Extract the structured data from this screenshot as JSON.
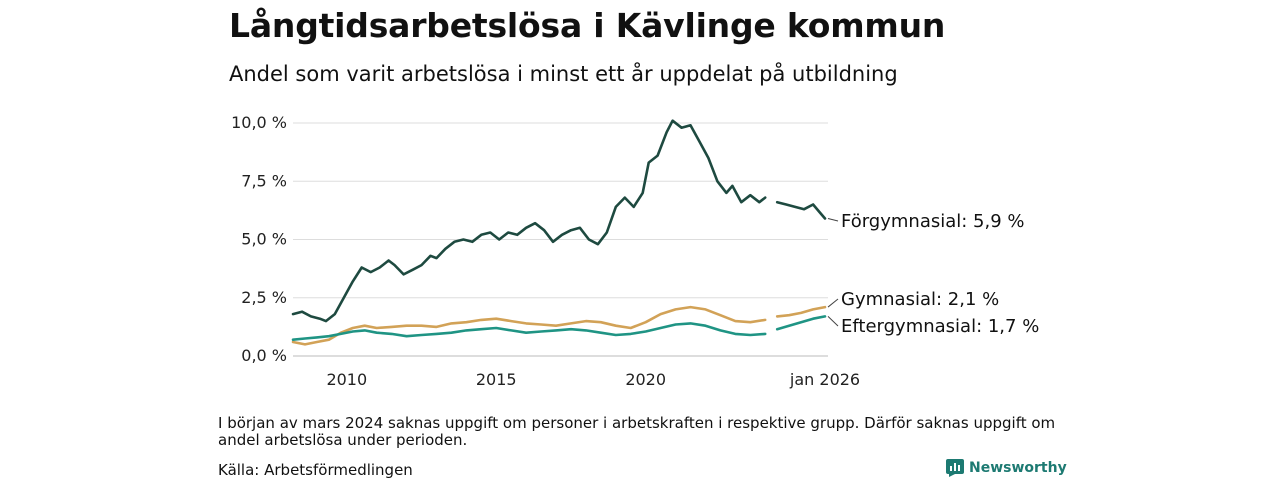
{
  "title": "Långtidsarbetslösa i Kävlinge kommun",
  "subtitle": "Andel som varit arbetslösa i minst ett år uppdelat på utbildning",
  "footnote": "I början av mars 2024 saknas uppgift om personer i arbetskraften i respektive grupp. Därför saknas uppgift om andel arbetslösa under perioden.",
  "source": "Källa: Arbetsförmedlingen",
  "brand": "Newsworthy",
  "colors": {
    "forgymnasial": "#1e4a40",
    "gymnasial": "#d2a257",
    "eftergymnasial": "#1f9484",
    "grid": "#dddddd",
    "brand": "#1d7a72"
  },
  "chart_data": {
    "type": "line",
    "title": "Långtidsarbetslösa i Kävlinge kommun",
    "xlabel": "",
    "ylabel": "",
    "xlim": [
      2008.2,
      2026.1
    ],
    "ylim": [
      0,
      10
    ],
    "x_ticks": [
      {
        "value": 2010,
        "label": "2010"
      },
      {
        "value": 2015,
        "label": "2015"
      },
      {
        "value": 2020,
        "label": "2020"
      },
      {
        "value": 2026.0,
        "label": "jan 2026"
      }
    ],
    "y_ticks": [
      {
        "value": 0,
        "label": "0,0 %"
      },
      {
        "value": 2.5,
        "label": "2,5 %"
      },
      {
        "value": 5,
        "label": "5,0 %"
      },
      {
        "value": 7.5,
        "label": "7,5 %"
      },
      {
        "value": 10,
        "label": "10,0 %"
      }
    ],
    "grid": true,
    "gap": [
      2024.05,
      2024.4
    ],
    "series": [
      {
        "name": "Förgymnasial",
        "end_label": "Förgymnasial: 5,9 %",
        "color_key": "forgymnasial",
        "x": [
          2008.2,
          2008.5,
          2008.8,
          2009.1,
          2009.3,
          2009.6,
          2009.9,
          2010.2,
          2010.5,
          2010.8,
          2011.1,
          2011.4,
          2011.6,
          2011.9,
          2012.2,
          2012.5,
          2012.8,
          2013.0,
          2013.3,
          2013.6,
          2013.9,
          2014.2,
          2014.5,
          2014.8,
          2015.1,
          2015.4,
          2015.7,
          2016.0,
          2016.3,
          2016.6,
          2016.9,
          2017.2,
          2017.5,
          2017.8,
          2018.1,
          2018.4,
          2018.7,
          2019.0,
          2019.3,
          2019.6,
          2019.9,
          2020.1,
          2020.4,
          2020.7,
          2020.9,
          2021.2,
          2021.5,
          2021.8,
          2022.1,
          2022.4,
          2022.7,
          2022.9,
          2023.2,
          2023.5,
          2023.8,
          2024.0,
          2024.4,
          2024.7,
          2025.0,
          2025.3,
          2025.6,
          2025.8,
          2026.0
        ],
        "y": [
          1.8,
          1.9,
          1.7,
          1.6,
          1.5,
          1.8,
          2.5,
          3.2,
          3.8,
          3.6,
          3.8,
          4.1,
          3.9,
          3.5,
          3.7,
          3.9,
          4.3,
          4.2,
          4.6,
          4.9,
          5.0,
          4.9,
          5.2,
          5.3,
          5.0,
          5.3,
          5.2,
          5.5,
          5.7,
          5.4,
          4.9,
          5.2,
          5.4,
          5.5,
          5.0,
          4.8,
          5.3,
          6.4,
          6.8,
          6.4,
          7.0,
          8.3,
          8.6,
          9.6,
          10.1,
          9.8,
          9.9,
          9.2,
          8.5,
          7.5,
          7.0,
          7.3,
          6.6,
          6.9,
          6.6,
          6.8,
          6.6,
          6.5,
          6.4,
          6.3,
          6.5,
          6.2,
          5.9
        ]
      },
      {
        "name": "Gymnasial",
        "end_label": "Gymnasial: 2,1 %",
        "color_key": "gymnasial",
        "x": [
          2008.2,
          2008.6,
          2009.0,
          2009.4,
          2009.8,
          2010.2,
          2010.6,
          2011.0,
          2011.5,
          2012.0,
          2012.5,
          2013.0,
          2013.5,
          2014.0,
          2014.5,
          2015.0,
          2015.5,
          2016.0,
          2016.5,
          2017.0,
          2017.5,
          2018.0,
          2018.5,
          2019.0,
          2019.5,
          2020.0,
          2020.5,
          2021.0,
          2021.5,
          2022.0,
          2022.5,
          2023.0,
          2023.5,
          2024.0,
          2024.4,
          2024.8,
          2025.2,
          2025.6,
          2026.0
        ],
        "y": [
          0.6,
          0.5,
          0.6,
          0.7,
          1.0,
          1.2,
          1.3,
          1.2,
          1.25,
          1.3,
          1.3,
          1.25,
          1.4,
          1.45,
          1.55,
          1.6,
          1.5,
          1.4,
          1.35,
          1.3,
          1.4,
          1.5,
          1.45,
          1.3,
          1.2,
          1.45,
          1.8,
          2.0,
          2.1,
          2.0,
          1.75,
          1.5,
          1.45,
          1.55,
          1.7,
          1.75,
          1.85,
          2.0,
          2.1
        ]
      },
      {
        "name": "Eftergymnasial",
        "end_label": "Eftergymnasial: 1,7 %",
        "color_key": "eftergymnasial",
        "x": [
          2008.2,
          2008.6,
          2009.0,
          2009.4,
          2009.8,
          2010.2,
          2010.6,
          2011.0,
          2011.5,
          2012.0,
          2012.5,
          2013.0,
          2013.5,
          2014.0,
          2014.5,
          2015.0,
          2015.5,
          2016.0,
          2016.5,
          2017.0,
          2017.5,
          2018.0,
          2018.5,
          2019.0,
          2019.5,
          2020.0,
          2020.5,
          2021.0,
          2021.5,
          2022.0,
          2022.5,
          2023.0,
          2023.5,
          2024.0,
          2024.4,
          2024.8,
          2025.2,
          2025.6,
          2026.0
        ],
        "y": [
          0.7,
          0.75,
          0.8,
          0.85,
          0.95,
          1.05,
          1.1,
          1.0,
          0.95,
          0.85,
          0.9,
          0.95,
          1.0,
          1.1,
          1.15,
          1.2,
          1.1,
          1.0,
          1.05,
          1.1,
          1.15,
          1.1,
          1.0,
          0.9,
          0.95,
          1.05,
          1.2,
          1.35,
          1.4,
          1.3,
          1.1,
          0.95,
          0.9,
          0.95,
          1.15,
          1.3,
          1.45,
          1.6,
          1.7
        ]
      }
    ]
  }
}
